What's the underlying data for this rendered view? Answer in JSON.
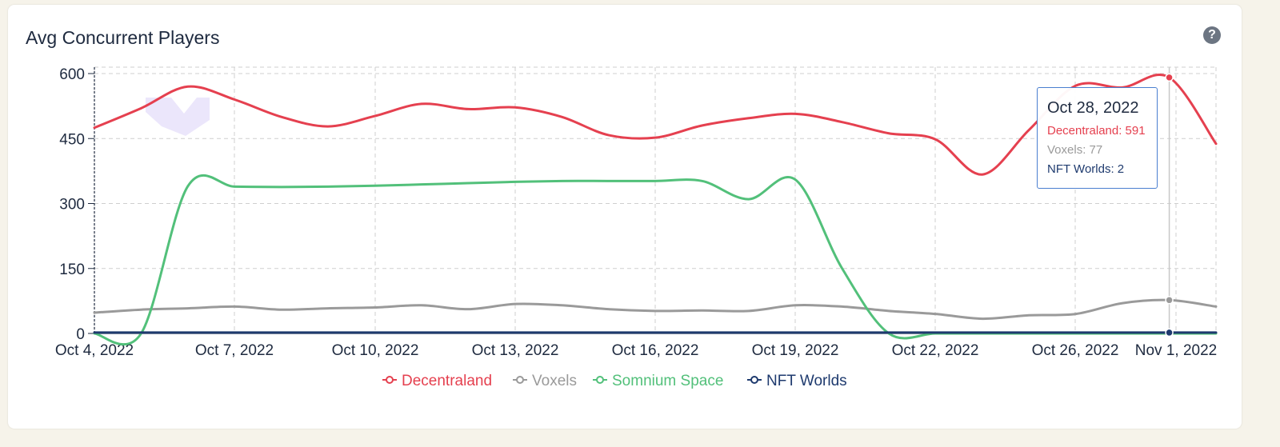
{
  "title": "Avg Concurrent Players",
  "help_icon": "?",
  "chart_data": {
    "type": "line",
    "x_labels": [
      "Oct 4, 2022",
      "Oct 7, 2022",
      "Oct 10, 2022",
      "Oct 13, 2022",
      "Oct 16, 2022",
      "Oct 19, 2022",
      "Oct 22, 2022",
      "Oct 26, 2022",
      "Nov 1, 2022"
    ],
    "y_ticks": [
      0,
      150,
      300,
      450,
      600
    ],
    "ylim": [
      0,
      600
    ],
    "grid": true,
    "legend_position": "bottom-center",
    "series": [
      {
        "name": "Decentraland",
        "color": "#e5404f",
        "values": [
          475,
          520,
          570,
          540,
          500,
          478,
          502,
          530,
          518,
          522,
          500,
          458,
          452,
          480,
          497,
          507,
          488,
          462,
          448,
          367,
          470,
          572,
          568,
          591,
          438
        ]
      },
      {
        "name": "Voxels",
        "color": "#9a9a9a",
        "values": [
          48,
          55,
          58,
          62,
          55,
          58,
          60,
          65,
          56,
          68,
          65,
          56,
          52,
          53,
          52,
          65,
          62,
          52,
          45,
          34,
          42,
          45,
          70,
          77,
          62
        ]
      },
      {
        "name": "Somnium Space",
        "color": "#52c07a",
        "values": [
          0,
          0,
          340,
          339,
          338,
          339,
          341,
          344,
          347,
          350,
          352,
          352,
          352,
          352,
          310,
          355,
          150,
          0,
          0,
          0,
          0,
          0,
          0,
          0,
          0
        ]
      },
      {
        "name": "NFT Worlds",
        "color": "#1e3a6e",
        "values": [
          2,
          2,
          2,
          2,
          2,
          2,
          2,
          2,
          2,
          2,
          2,
          2,
          2,
          2,
          2,
          2,
          2,
          2,
          2,
          2,
          2,
          2,
          2,
          2,
          2
        ]
      }
    ],
    "tooltip": {
      "date": "Oct 28, 2022",
      "rows": [
        {
          "label": "Decentraland: 591",
          "color": "#e5404f"
        },
        {
          "label": "Voxels: 77",
          "color": "#9a9a9a"
        },
        {
          "label": "NFT Worlds: 2",
          "color": "#1e3a6e"
        }
      ]
    }
  }
}
